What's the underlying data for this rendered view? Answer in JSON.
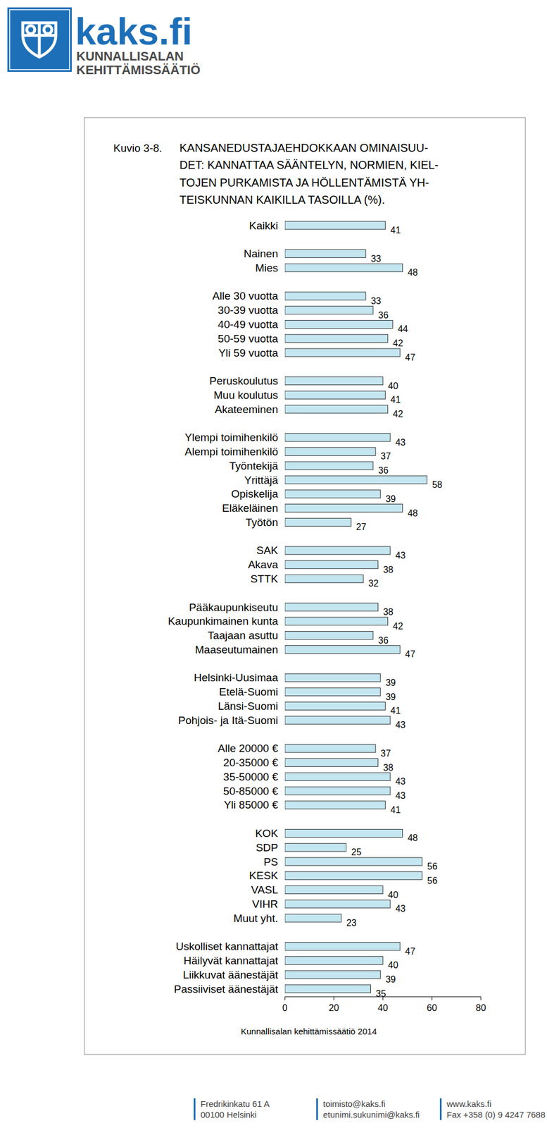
{
  "header": {
    "brand": "kaks.fi",
    "org_lines": [
      "KUNNALLISALAN",
      "KEHITTÄMISSÄÄTIÖ"
    ]
  },
  "chart_data": {
    "type": "bar",
    "orientation": "horizontal",
    "title": "KANSANEDUSTAJAEHDOKKAAN OMINAISUU-\nDET: KANNATTAA SÄÄNTELYN, NORMIEN, KIEL-\nTOJEN PURKAMISTA JA HÖLLENTÄMISTÄ YH-\nTEISKUNNAN KAIKILLA TASOILLA (%).",
    "annotations": [
      "Kuvio 3-8.",
      "Kunnallisalan kehittämissäätiö 2014"
    ],
    "categories": [
      "Kaikki",
      null,
      "Nainen",
      "Mies",
      null,
      "Alle 30 vuotta",
      "30-39 vuotta",
      "40-49 vuotta",
      "50-59 vuotta",
      "Yli 59 vuotta",
      null,
      "Peruskoulutus",
      "Muu koulutus",
      "Akateeminen",
      null,
      "Ylempi toimihenkilö",
      "Alempi toimihenkilö",
      "Työntekijä",
      "Yrittäjä",
      "Opiskelija",
      "Eläkeläinen",
      "Työtön",
      null,
      "SAK",
      "Akava",
      "STTK",
      null,
      "Pääkaupunkiseutu",
      "Kaupunkimainen kunta",
      "Taajaan asuttu",
      "Maaseutumainen",
      null,
      "Helsinki-Uusimaa",
      "Etelä-Suomi",
      "Länsi-Suomi",
      "Pohjois- ja Itä-Suomi",
      null,
      "Alle 20000 €",
      "20-35000 €",
      "35-50000 €",
      "50-85000 €",
      "Yli 85000 €",
      null,
      "KOK",
      "SDP",
      "PS",
      "KESK",
      "VASL",
      "VIHR",
      "Muut yht.",
      null,
      "Uskolliset kannattajat",
      "Häilyvät kannattajat",
      "Liikkuvat äänestäjät",
      "Passiiviset äänestäjät"
    ],
    "values": [
      41,
      null,
      33,
      48,
      null,
      33,
      36,
      44,
      42,
      47,
      null,
      40,
      41,
      42,
      null,
      43,
      37,
      36,
      58,
      39,
      48,
      27,
      null,
      43,
      38,
      32,
      null,
      38,
      42,
      36,
      47,
      null,
      39,
      39,
      41,
      43,
      null,
      37,
      38,
      43,
      43,
      41,
      null,
      48,
      25,
      56,
      56,
      40,
      43,
      23,
      null,
      47,
      40,
      39,
      35
    ],
    "color": "#c4e6f0",
    "xlim": [
      0,
      80
    ],
    "xticks": [
      0,
      20,
      40,
      60,
      80
    ],
    "grid": false,
    "data_labels": true
  },
  "footer": {
    "columns": [
      [
        "Fredrikinkatu 61 A",
        "00100 Helsinki"
      ],
      [
        "toimisto@kaks.fi",
        "etunimi.sukunimi@kaks.fi"
      ],
      [
        "www.kaks.fi",
        "Fax +358 (0) 9 4247 7688"
      ]
    ]
  }
}
